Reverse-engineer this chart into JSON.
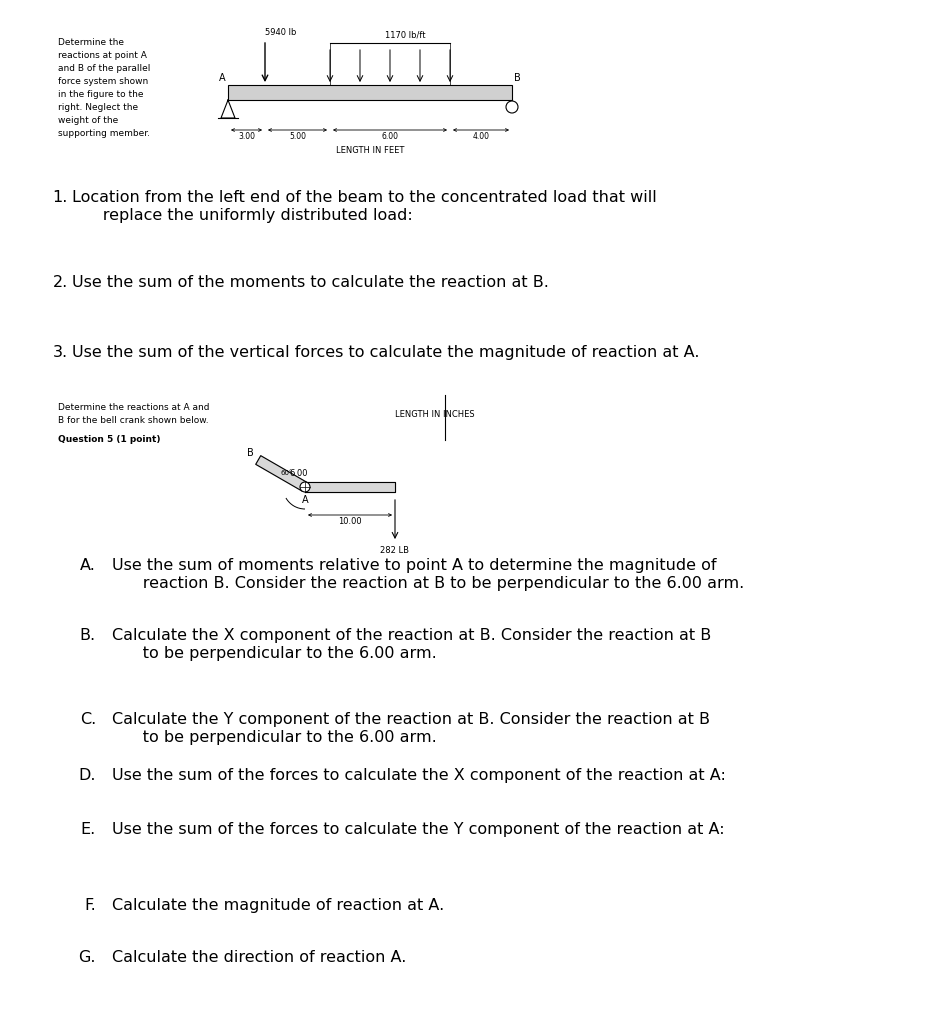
{
  "bg_color": "#ffffff",
  "fig_width": 9.29,
  "fig_height": 10.24,
  "dpi": 100,
  "problem_text_lines": [
    "Determine the",
    "reactions at point A",
    "and B of the parallel",
    "force system shown",
    "in the figure to the",
    "right. Neglect the",
    "weight of the",
    "supporting member."
  ],
  "q5_text_lines": [
    "Determine the reactions at A and",
    "B for the bell crank shown below."
  ],
  "q5_label": "Question 5 (1 point)"
}
